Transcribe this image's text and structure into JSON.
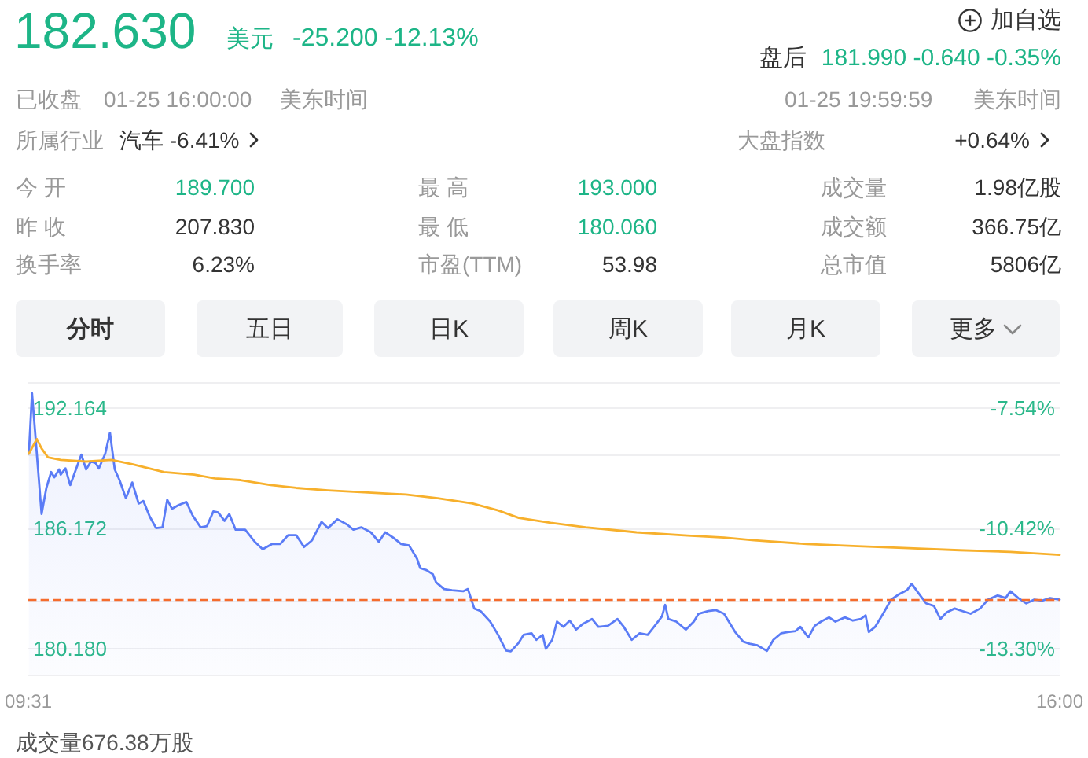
{
  "chart_data": {
    "type": "line",
    "series": [
      {
        "type": "area",
        "color": "#5b7cf6",
        "x": [
          9.52,
          9.54,
          9.6,
          9.63,
          9.66,
          9.68,
          9.71,
          9.72,
          9.75,
          9.78,
          9.81,
          9.85,
          9.88,
          9.91,
          9.94,
          9.96,
          10.0,
          10.03,
          10.06,
          10.09,
          10.13,
          10.17,
          10.21,
          10.24,
          10.28,
          10.32,
          10.36,
          10.39,
          10.42,
          10.46,
          10.51,
          10.55,
          10.6,
          10.64,
          10.68,
          10.71,
          10.75,
          10.78,
          10.82,
          10.88,
          10.94,
          10.99,
          11.05,
          11.1,
          11.15,
          11.2,
          11.25,
          11.3,
          11.36,
          11.4,
          11.46,
          11.52,
          11.56,
          11.61,
          11.67,
          11.72,
          11.76,
          11.81,
          11.86,
          11.91,
          11.96,
          11.98,
          12.02,
          12.06,
          12.08,
          12.13,
          12.18,
          12.25,
          12.28,
          12.32,
          12.36,
          12.42,
          12.47,
          12.52,
          12.55,
          12.6,
          12.63,
          12.68,
          12.71,
          12.75,
          12.77,
          12.81,
          12.84,
          12.88,
          12.92,
          12.96,
          13.0,
          13.06,
          13.1,
          13.16,
          13.22,
          13.26,
          13.31,
          13.36,
          13.41,
          13.45,
          13.5,
          13.52,
          13.54,
          13.59,
          13.65,
          13.7,
          13.73,
          13.79,
          13.84,
          13.89,
          13.96,
          14.01,
          14.05,
          14.1,
          14.16,
          14.2,
          14.25,
          14.29,
          14.34,
          14.37,
          14.42,
          14.46,
          14.5,
          14.55,
          14.59,
          14.65,
          14.7,
          14.75,
          14.78,
          14.8,
          14.84,
          14.89,
          14.94,
          14.99,
          15.04,
          15.07,
          15.11,
          15.16,
          15.21,
          15.25,
          15.29,
          15.34,
          15.39,
          15.44,
          15.5,
          15.55,
          15.61,
          15.66,
          15.69,
          15.74,
          15.79,
          15.84,
          15.89,
          15.94,
          16.0
        ],
        "values": [
          189.89,
          192.9,
          186.89,
          188.19,
          188.98,
          188.72,
          189.11,
          188.85,
          189.16,
          188.33,
          188.98,
          189.84,
          189.11,
          189.5,
          189.42,
          189.16,
          189.89,
          190.93,
          189.11,
          188.58,
          187.68,
          188.46,
          187.41,
          187.54,
          186.76,
          186.19,
          186.23,
          187.6,
          187.15,
          187.33,
          187.49,
          186.81,
          186.23,
          186.29,
          187.02,
          186.97,
          186.55,
          186.89,
          186.11,
          186.11,
          185.51,
          185.14,
          185.4,
          185.4,
          185.84,
          185.84,
          185.25,
          185.58,
          186.5,
          186.19,
          186.63,
          186.37,
          186.11,
          186.23,
          185.98,
          185.51,
          185.98,
          185.72,
          185.4,
          185.33,
          184.67,
          184.2,
          184.1,
          183.89,
          183.49,
          183.16,
          183.1,
          183.05,
          183.16,
          182.19,
          182.06,
          181.54,
          180.88,
          180.1,
          180.06,
          180.49,
          180.88,
          180.96,
          180.63,
          180.88,
          180.18,
          180.63,
          181.54,
          181.28,
          181.59,
          181.14,
          181.41,
          181.67,
          181.28,
          181.33,
          181.67,
          181.28,
          180.63,
          180.96,
          180.88,
          181.28,
          181.8,
          182.37,
          181.67,
          181.54,
          181.14,
          181.54,
          181.93,
          182.06,
          182.11,
          181.93,
          181.02,
          180.55,
          180.44,
          180.36,
          180.08,
          180.63,
          180.96,
          181.02,
          181.07,
          181.28,
          180.75,
          181.33,
          181.54,
          181.75,
          181.54,
          181.75,
          181.59,
          181.67,
          181.85,
          181.02,
          181.28,
          181.93,
          182.63,
          182.9,
          183.1,
          183.42,
          182.98,
          182.45,
          182.32,
          181.67,
          182.0,
          182.19,
          182.06,
          181.93,
          182.19,
          182.63,
          182.84,
          182.71,
          183.05,
          182.71,
          182.45,
          182.63,
          182.58,
          182.71,
          182.63
        ]
      },
      {
        "color": "#f7b02c",
        "x": [
          9.52,
          9.57,
          9.6,
          9.64,
          9.72,
          9.88,
          10.04,
          10.17,
          10.37,
          10.56,
          10.69,
          10.85,
          11.04,
          11.2,
          11.4,
          11.72,
          11.89,
          12.09,
          12.31,
          12.47,
          12.6,
          12.8,
          13.02,
          13.34,
          13.66,
          13.89,
          14.08,
          14.41,
          14.73,
          15.05,
          15.37,
          15.69,
          16.0
        ],
        "values": [
          189.89,
          190.62,
          190.15,
          189.71,
          189.58,
          189.5,
          189.58,
          189.37,
          188.98,
          188.85,
          188.66,
          188.58,
          188.33,
          188.19,
          188.07,
          187.93,
          187.86,
          187.68,
          187.41,
          187.07,
          186.7,
          186.45,
          186.23,
          185.98,
          185.82,
          185.72,
          185.58,
          185.4,
          185.29,
          185.19,
          185.09,
          185.01,
          184.86
        ]
      }
    ],
    "xlim": [
      9.5167,
      16
    ],
    "xticks": [
      {
        "value": 9.5167,
        "label": "09:31"
      },
      {
        "value": 16,
        "label": "16:00"
      }
    ],
    "ylim": [
      178.9,
      193.45
    ],
    "yticks": [
      {
        "value": 178.9,
        "label": null
      },
      {
        "value": 180.18,
        "label": "180.180"
      },
      {
        "value": 182.53,
        "label": null
      },
      186.172,
      {
        "value": 189.81,
        "label": null
      },
      192.164,
      {
        "value": 193.45,
        "label": null
      }
    ],
    "y2lim": [
      -13.92,
      -6.92
    ],
    "y2ticks": [
      {
        "value": -13.3,
        "label": "-13.30%"
      },
      {
        "value": -10.42,
        "label": "-10.42%"
      },
      {
        "value": -7.54,
        "label": "-7.54%"
      }
    ],
    "ref_lines": [
      {
        "axis": "y",
        "value": 182.63,
        "color": "#f56c2d",
        "line_style": "dashed"
      }
    ],
    "grid": "y",
    "marker": "none",
    "annotations": [
      "182.630",
      "美元",
      "-25.200 -12.13%",
      "加自选",
      "盘后",
      "181.990 -0.640 -0.35%",
      "已收盘",
      "01-25 16:00:00",
      "美东时间",
      "01-25 19:59:59",
      "美东时间",
      "所属行业",
      "汽车 -6.41%",
      "大盘指数",
      "+0.64%",
      "今 开",
      "189.700",
      "最 高",
      "193.000",
      "成交量",
      "1.98亿股",
      "昨 收",
      "207.830",
      "最 低",
      "180.060",
      "成交额",
      "366.75亿",
      "换手率",
      "6.23%",
      "市盈(TTM)",
      "53.98",
      "总市值",
      "5806亿",
      "分时",
      "五日",
      "日K",
      "周K",
      "月K",
      "更多",
      "成交量676.38万股"
    ]
  }
}
